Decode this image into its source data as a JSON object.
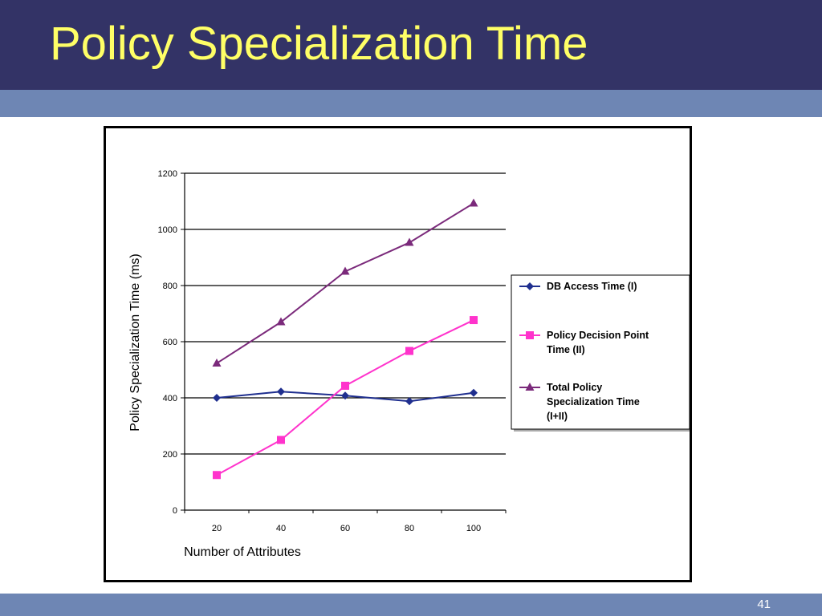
{
  "slide": {
    "title": "Policy Specialization Time",
    "page_number": "41"
  },
  "colors": {
    "title_bar": "#333366",
    "title_text": "#ffff66",
    "accent_bar": "#6e86b4",
    "series_db": "#1f2f8f",
    "series_pdp": "#ff33cc",
    "series_total": "#7b2a7b"
  },
  "chart_data": {
    "type": "line",
    "title": "",
    "xlabel": "Number of Attributes",
    "ylabel": "Policy Specialization Time (ms)",
    "categories": [
      "20",
      "40",
      "60",
      "80",
      "100"
    ],
    "ylim": [
      0,
      1200
    ],
    "yticks": [
      0,
      200,
      400,
      600,
      800,
      1000,
      1200
    ],
    "grid": "horizontal",
    "legend_position": "right",
    "series": [
      {
        "name": "DB Access Time (I)",
        "marker": "diamond",
        "color": "#1f2f8f",
        "values": [
          400,
          422,
          408,
          388,
          418
        ]
      },
      {
        "name": "Policy Decision Point Time (II)",
        "marker": "square",
        "color": "#ff33cc",
        "values": [
          125,
          250,
          443,
          567,
          677
        ]
      },
      {
        "name": "Total Policy Specialization Time (I+II)",
        "marker": "triangle",
        "color": "#7b2a7b",
        "values": [
          523,
          670,
          850,
          953,
          1093
        ]
      }
    ],
    "legend_lines": [
      [
        "DB Access Time (I)"
      ],
      [
        "Policy Decision Point",
        "Time (II)"
      ],
      [
        "Total Policy",
        "Specialization Time",
        "(I+II)"
      ]
    ]
  }
}
